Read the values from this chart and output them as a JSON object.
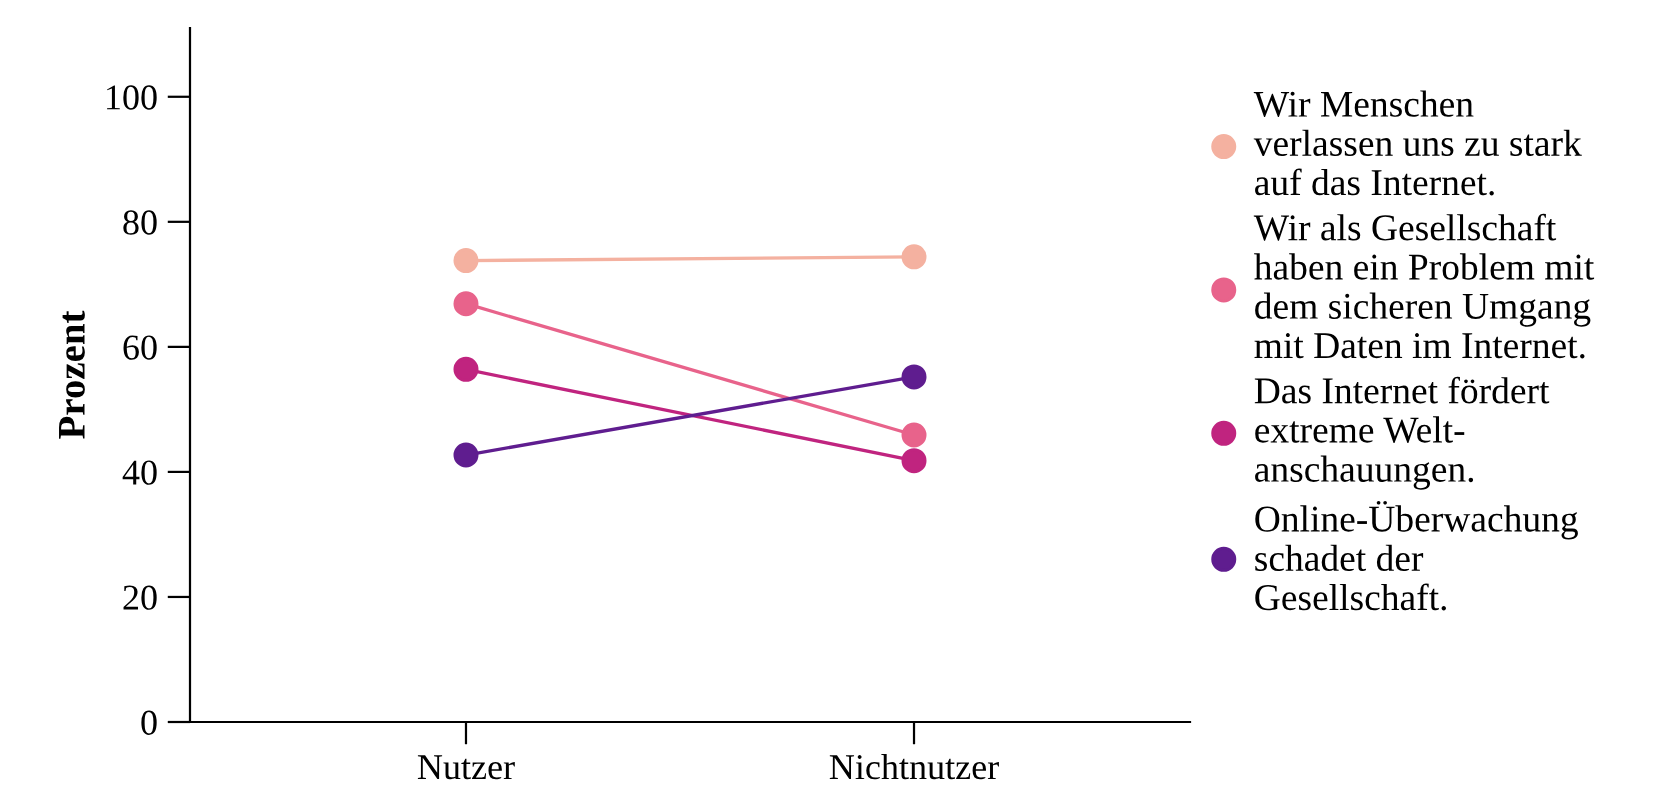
{
  "chart_data": {
    "type": "line",
    "ylabel": "Prozent",
    "categories": [
      "Nutzer",
      "Nichtnutzer"
    ],
    "series": [
      {
        "name": "Wir Menschen\nverlassen uns zu stark\nauf das Internet.",
        "color": "#f4b1a0",
        "values": [
          73.8,
          74.4
        ]
      },
      {
        "name": "Wir als Gesellschaft\nhaben ein Problem mit\ndem sicheren Umgang\nmit Daten im Internet.",
        "color": "#e8638b",
        "values": [
          66.9,
          45.9
        ]
      },
      {
        "name": "Das Internet fördert\nextreme Welt-\nanschauungen.",
        "color": "#c0247f",
        "values": [
          56.4,
          41.8
        ]
      },
      {
        "name": "Online-Überwachung\nschadet der\nGesellschaft.",
        "color": "#5f1d8f",
        "values": [
          42.7,
          55.2
        ]
      }
    ],
    "ylim": [
      0,
      111
    ],
    "yticks": [
      0,
      20,
      40,
      60,
      80,
      100
    ],
    "grid": false,
    "legend": "right",
    "marker": "circle",
    "line_style": "solid"
  }
}
